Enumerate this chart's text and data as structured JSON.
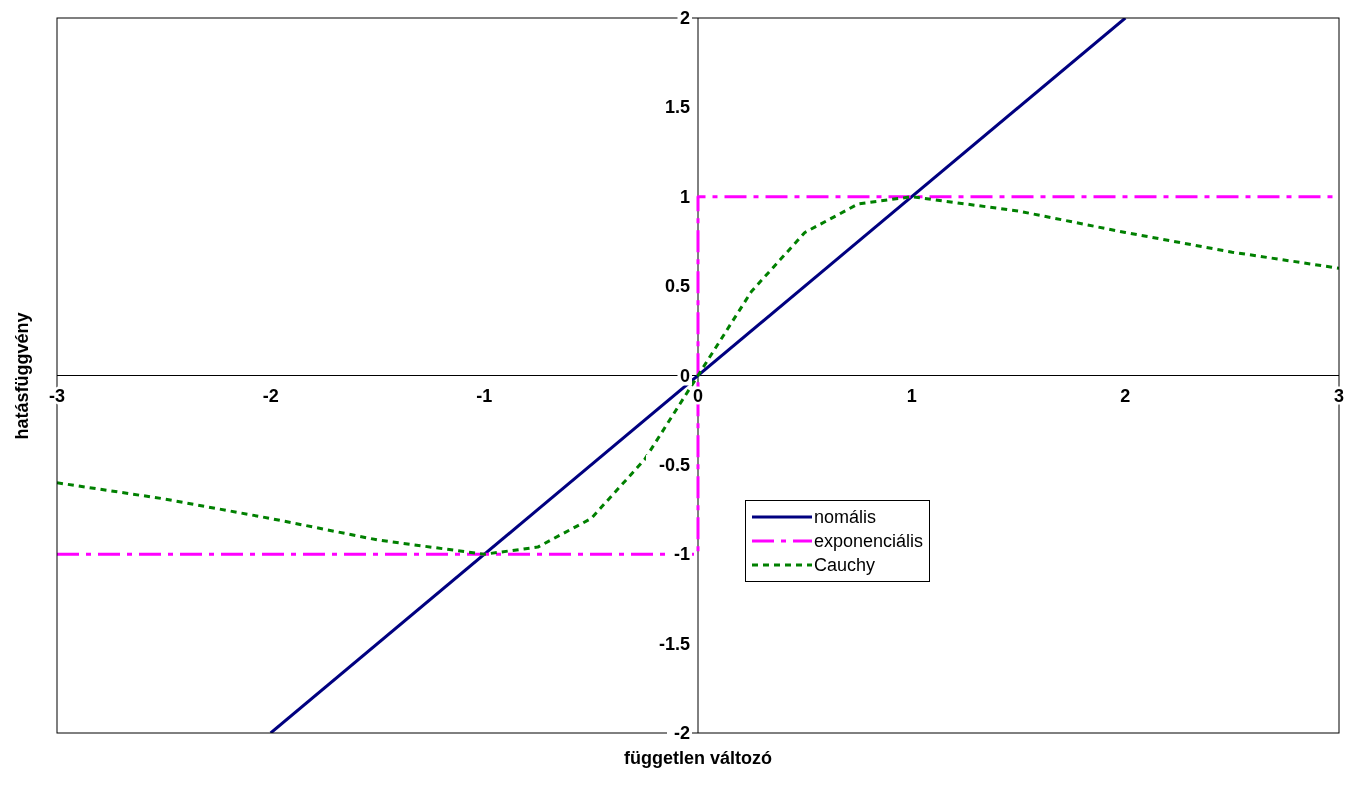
{
  "chart_data": {
    "type": "line",
    "xlabel": "független változó",
    "ylabel": "hatásfüggvény",
    "xlim": [
      -3,
      3
    ],
    "xticks": [
      -3,
      -2,
      -1,
      0,
      1,
      2,
      3
    ],
    "ylim": [
      -2,
      2
    ],
    "yticks": [
      -2,
      -1.5,
      -1,
      -0.5,
      0,
      0.5,
      1,
      1.5,
      2
    ],
    "legend": "center",
    "marker": "none",
    "series": [
      {
        "name": "nomális",
        "color": "#000080",
        "line_style": "solid",
        "x": [
          -2,
          2
        ],
        "values": [
          -2,
          2
        ]
      },
      {
        "name": "exponenciális",
        "color": "#ff00ff",
        "line_style": "dashed",
        "x": [
          -3,
          0,
          0,
          3
        ],
        "values": [
          -1,
          -1,
          1,
          1
        ]
      },
      {
        "name": "Cauchy",
        "color": "#008000",
        "line_style": "dotted",
        "x": [
          -3,
          -2.5,
          -2,
          -1.5,
          -1,
          -0.75,
          -0.5,
          -0.25,
          0,
          0.25,
          0.5,
          0.75,
          1,
          1.5,
          2,
          2.5,
          3
        ],
        "values": [
          -0.6,
          -0.69,
          -0.8,
          -0.92,
          -1,
          -0.96,
          -0.8,
          -0.47,
          0,
          0.47,
          0.8,
          0.96,
          1,
          0.92,
          0.8,
          0.69,
          0.6
        ]
      }
    ]
  }
}
